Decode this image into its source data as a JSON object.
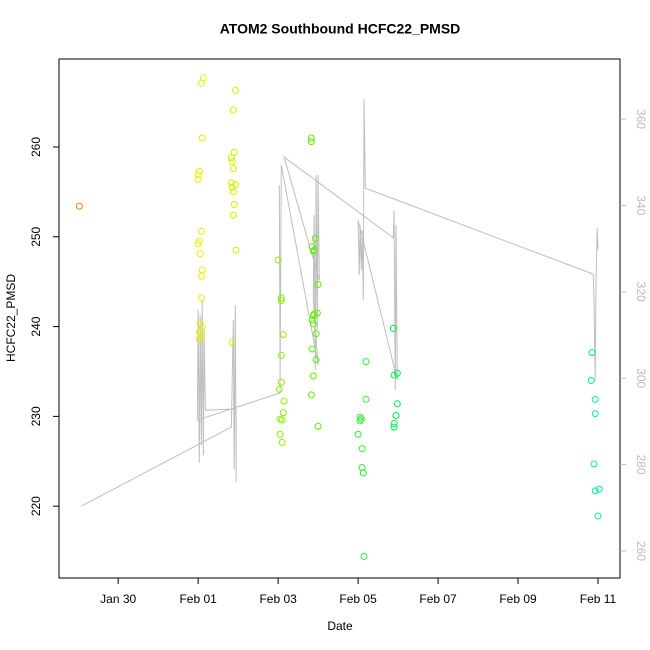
{
  "chart_data": {
    "type": "scatter",
    "title": "ATOM2 Southbound HCFC22_PMSD",
    "x_label": "Date",
    "y_label": "HCFC22_PMSD",
    "xlim": [
      28.52,
      42.55
    ],
    "ylim": [
      212,
      269.8
    ],
    "y2lim": [
      253.75,
      373.9
    ],
    "xticks": [
      {
        "value": 30,
        "label": "Jan 30"
      },
      {
        "value": 32,
        "label": "Feb 01"
      },
      {
        "value": 34,
        "label": "Feb 03"
      },
      {
        "value": 36,
        "label": "Feb 05"
      },
      {
        "value": 38,
        "label": "Feb 07"
      },
      {
        "value": 40,
        "label": "Feb 09"
      },
      {
        "value": 42,
        "label": "Feb 11"
      }
    ],
    "yticks": [
      220,
      230,
      240,
      250,
      260
    ],
    "y2ticks": [
      260,
      280,
      300,
      320,
      340,
      360
    ],
    "series": [
      {
        "color": "#ff8000",
        "x": [
          29.03
        ],
        "values": [
          253.4
        ]
      },
      {
        "color": "#e8f000",
        "x": [
          32.13,
          32.08,
          32.1,
          32.03,
          32.0,
          32.0,
          32.08,
          32.03,
          32.0,
          32.05,
          32.1,
          32.08,
          32.08,
          32.05,
          32.1,
          32.03,
          32.08,
          32.03
        ],
        "values": [
          267.7,
          267.1,
          261,
          257.3,
          256.9,
          256.4,
          250.6,
          249.5,
          249.2,
          248.1,
          246.3,
          245.6,
          243.2,
          240.4,
          239.9,
          239.4,
          239,
          238.6
        ]
      },
      {
        "color": "#d0f000",
        "x": [
          32.93,
          32.88,
          32.9,
          32.83,
          32.85,
          32.88,
          32.83,
          32.93,
          32.85,
          32.88,
          32.9,
          32.88,
          32.95,
          32.85
        ],
        "values": [
          266.3,
          264.1,
          259.4,
          258.8,
          258.4,
          257.6,
          256,
          255.8,
          255.5,
          255,
          253.6,
          252.4,
          248.5,
          238.2
        ]
      },
      {
        "color": "#8cf000",
        "x": [
          34.0,
          34.08,
          34.08,
          34.13,
          34.08,
          34.08,
          34.03,
          34.15,
          34.13,
          34.1,
          34.05,
          34.05,
          34.1
        ],
        "values": [
          247.4,
          243.2,
          242.9,
          239.1,
          236.8,
          233.8,
          233,
          231.7,
          230.4,
          229.6,
          229.7,
          228,
          227.1
        ]
      },
      {
        "color": "#5ef000",
        "x": [
          34.83,
          34.83,
          34.93,
          34.85,
          34.9,
          34.88,
          35.0,
          34.98,
          34.9,
          34.88,
          34.85,
          34.88,
          34.95,
          34.85,
          34.95,
          34.88,
          34.83,
          35.0
        ],
        "values": [
          261,
          260.6,
          249.8,
          248.9,
          248.5,
          248.4,
          244.7,
          241.5,
          241.4,
          241.2,
          240.7,
          240.3,
          239.2,
          237.5,
          236.3,
          234.5,
          232.4,
          228.9
        ]
      },
      {
        "color": "#30f030",
        "x": [
          36.2,
          36.2,
          36.05,
          36.08,
          36.05,
          36.0,
          36.1,
          36.1,
          36.13,
          36.15
        ],
        "values": [
          236.1,
          231.9,
          229.9,
          229.7,
          229.5,
          228,
          226.4,
          224.3,
          223.7,
          214.4
        ]
      },
      {
        "color": "#00f050",
        "x": [
          36.88,
          36.98,
          36.9,
          36.98,
          36.95,
          36.9,
          36.9
        ],
        "values": [
          239.8,
          234.8,
          234.6,
          231.4,
          230.1,
          229.2,
          228.8
        ]
      },
      {
        "color": "#00f0a0",
        "x": [
          41.85,
          41.83,
          41.93,
          41.93,
          41.9,
          42.03,
          41.93,
          42.0
        ],
        "values": [
          237.1,
          234,
          231.9,
          230.3,
          224.7,
          221.9,
          221.7,
          218.9
        ]
      },
      {
        "type": "line",
        "axis": "y2",
        "color": "#bebebe",
        "x": [
          29.08,
          32.83,
          32.88,
          32.9,
          32.93,
          32.95,
          32.95,
          32.18,
          32.15,
          32.13,
          32.1,
          32.08,
          32.05,
          32.03,
          32.0,
          31.98,
          34.05,
          34.03,
          34.05,
          34.08,
          35.0,
          34.88,
          34.9,
          34.93,
          34.95,
          34.98,
          35.0,
          35.03,
          34.15,
          36.88,
          36.9,
          36.93,
          36.95,
          36.98,
          36.0,
          36.03,
          36.05,
          36.08,
          36.1,
          36.13,
          36.15,
          36.18,
          41.88,
          41.9,
          41.93,
          41.95,
          41.98,
          42.0
        ],
        "values": [
          270.4,
          288.7,
          313.5,
          278.8,
          316.9,
          276.0,
          292.9,
          292.6,
          311.2,
          282.2,
          318.1,
          284.5,
          314.6,
          280.4,
          315.8,
          290.3,
          296.6,
          344.7,
          300.7,
          349.4,
          303.1,
          318.1,
          337.8,
          301.9,
          347.0,
          311.2,
          347.0,
          322.7,
          351.2,
          332.5,
          338.9,
          297.3,
          335.5,
          299.6,
          336.6,
          323.9,
          335.5,
          325.0,
          334.3,
          318.1,
          364.6,
          344.0,
          324.1,
          318.1,
          299.6,
          322.7,
          334.8,
          329.7
        ]
      }
    ]
  }
}
